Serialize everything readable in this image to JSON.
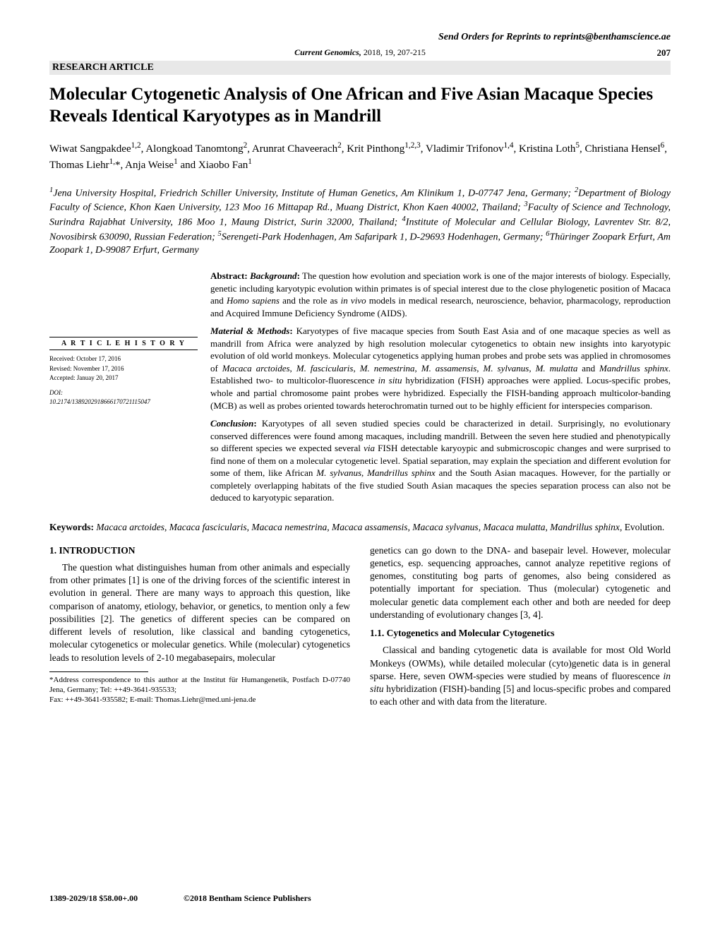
{
  "header": {
    "reprint": "Send Orders for Reprints to reprints@benthamscience.ae",
    "journal_prefix": "Current Genomics,",
    "journal_rest": " 2018, 19, 207-215",
    "page_top": "207",
    "article_type": "RESEARCH ARTICLE"
  },
  "title": "Molecular Cytogenetic Analysis of One African and Five Asian Macaque Species Reveals Identical Karyotypes as in Mandrill",
  "authors_html": "Wiwat Sangpakdee<sup>1,2</sup>, Alongkoad Tanomtong<sup>2</sup>, Arunrat Chaveerach<sup>2</sup>, Krit Pinthong<sup>1,2,3</sup>, Vladimir Trifonov<sup>1,4</sup>, Kristina Loth<sup>5</sup>, Christiana Hensel<sup>6</sup>, Thomas Liehr<sup>1,</sup>*, Anja Weise<sup>1</sup> and Xiaobo Fan<sup>1</sup>",
  "affiliations_html": "<sup>1</sup>Jena University Hospital, Friedrich Schiller University, Institute of Human Genetics, Am Klinikum 1, D-07747 Jena, Germany; <sup>2</sup>Department of Biology Faculty of Science, Khon Kaen University, 123 Moo 16 Mittapap Rd., Muang District, Khon Kaen 40002, Thailand; <sup>3</sup>Faculty of Science and Technology, Surindra Rajabhat University, 186 Moo 1, Maung District, Surin 32000, Thailand; <sup>4</sup>Institute of Molecular and Cellular Biology, Lavrentev Str. 8/2, Novosibirsk 630090, Russian Federation; <sup>5</sup>Serengeti-Park Hodenhagen, Am Safaripark 1, D-29693 Hodenhagen, Germany; <sup>6</sup>Thüringer Zoopark Erfurt, Am Zoopark 1, D-99087 Erfurt, Germany",
  "history": {
    "header": "A R T I C L E  H I S T O R Y",
    "received": "Received: October 17, 2016",
    "revised": "Revised: November 17, 2016",
    "accepted": "Accepted: Januay 20, 2017",
    "doi_label": "DOI:",
    "doi": "10.2174/1389202918666170721115047"
  },
  "abstract": {
    "background_html": "<b>Abstract: <i>Background</i>:</b> The question how evolution and speciation work is one of the major interests of biology. Especially, genetic including karyotypic evolution within primates is of special interest due to the close phylogenetic position of Macaca and <i>Homo sapiens</i> and the role as <i>in vivo</i> models in medical research, neuroscience, behavior, pharmacology, reproduction and Acquired Immune Deficiency Syndrome (AIDS).",
    "methods_html": "<b><i>Material & Methods</i>:</b> Karyotypes of five macaque species from South East Asia and of one macaque species as well as mandrill from Africa were analyzed by high resolution molecular cytogenetics to obtain new insights into karyotypic evolution of old world monkeys. Molecular cytogenetics applying human probes and probe sets was applied in chromosomes of <i>Macaca arctoides</i>, <i>M. fascicularis</i>, <i>M. nemestrina</i>, <i>M. assamensis</i>, <i>M. sylvanus</i>, <i>M. mulatta</i> and <i>Mandrillus sphinx</i>. Established two- to multicolor-fluorescence <i>in situ</i> hybridization (FISH) approaches were applied. Locus-specific probes, whole and partial chromosome paint probes were hybridized. Especially the FISH-banding approach multicolor-banding (MCB) as well as probes oriented towards heterochromatin turned out to be highly efficient for interspecies comparison.",
    "conclusion_html": "<b><i>Conclusion</i>:</b> Karyotypes of all seven studied species could be characterized in detail. Surprisingly, no evolutionary conserved differences were found among macaques, including mandrill. Between the seven here studied and phenotypically so different species we expected several <i>via</i> FISH detectable karyoypic and submicroscopic changes and were surprised to find none of them on a molecular cytogenetic level. Spatial separation, may explain the speciation and different evolution for some of them, like African <i>M. sylvanus</i>, <i>Mandrillus sphinx</i> and the South Asian macaques. However, for the partially or completely overlapping habitats of the five studied South Asian macaques the species separation process can also not be deduced to karyotypic separation."
  },
  "keywords_html": "<b>Keywords:</b> <i>Macaca arctoides</i>, <i>Macaca fascicularis</i>, <i>Macaca nemestrina</i>, <i>Macaca assamensis</i>, <i>Macaca sylvanus</i>, <i>Macaca mulatta</i>, <i>Mandrillus sphinx</i>, Evolution.",
  "body": {
    "intro_header": "1. INTRODUCTION",
    "intro_para": "The question what distinguishes human from other animals and especially from other primates [1] is one of the driving forces of the scientific interest in evolution in general. There are many ways to approach this question, like comparison of anatomy, etiology, behavior, or genetics, to mention only a few possibilities [2]. The genetics of different species can be compared on different levels of resolution, like classical and banding cytogenetics, molecular cytogenetics or molecular genetics. While (molecular) cytogenetics leads to resolution levels of 2-10 megabasepairs, molecular",
    "col2_para1": "genetics can go down to the DNA- and basepair level. However, molecular genetics, esp. sequencing approaches, cannot analyze repetitive regions of genomes, constituting bog parts of genomes, also being considered as potentially important for speciation. Thus (molecular) cytogenetic and molecular genetic data complement each other and both are needed for deep understanding of evolutionary changes [3, 4].",
    "sub_header": "1.1. Cytogenetics and Molecular Cytogenetics",
    "col2_para2_html": "Classical and banding cytogenetic data is available for most Old World Monkeys (OWMs), while detailed molecular (cyto)genetic data is in general sparse. Here, seven OWM-species were studied by means of fluorescence <i>in situ</i> hybridization (FISH)-banding [5] and locus-specific probes and compared to each other and with data from the literature."
  },
  "footnote": {
    "line1": "*Address correspondence to this author at the Institut für Humangenetik, Postfach D-07740 Jena, Germany; Tel: ++49-3641-935533;",
    "line2": "Fax: ++49-3641-935582; E-mail: Thomas.Liehr@med.uni-jena.de"
  },
  "footer": {
    "left": "1389-2029/18 $58.00+.00",
    "right": "©2018 Bentham Science Publishers"
  },
  "colors": {
    "bar_bg": "#e8e8e8",
    "text": "#000000",
    "page_bg": "#ffffff"
  }
}
